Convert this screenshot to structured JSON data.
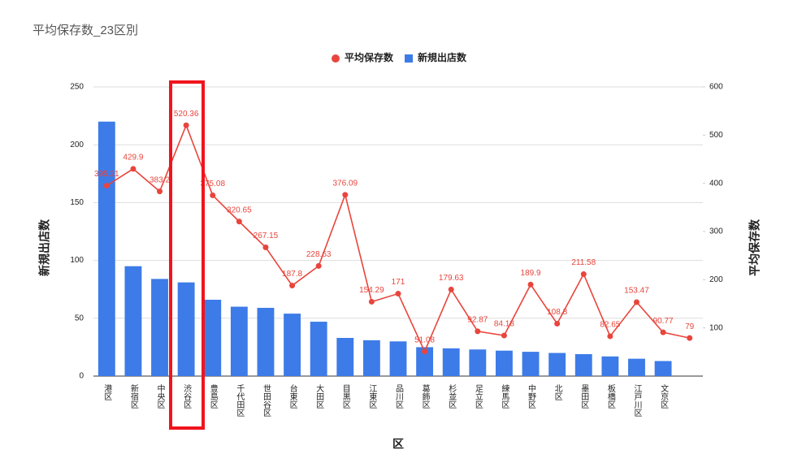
{
  "chart_data": {
    "type": "combo",
    "title": "平均保存数_23区別",
    "x_label": "区",
    "y_label": "新規出店数",
    "y2_label": "平均保存数",
    "categories": [
      "港区",
      "新宿区",
      "中央区",
      "渋谷区",
      "豊島区",
      "千代田区",
      "世田谷区",
      "台東区",
      "大田区",
      "目黒区",
      "江東区",
      "品川区",
      "葛飾区",
      "杉並区",
      "足立区",
      "練馬区",
      "中野区",
      "北区",
      "墨田区",
      "板橋区",
      "江戸川区",
      "文京区",
      null
    ],
    "series": [
      {
        "name": "平均保存数",
        "color": "#e8453c",
        "type": "line",
        "axis": "y2",
        "values": [
          395.21,
          429.9,
          383.2,
          520.36,
          375.08,
          320.65,
          267.15,
          187.8,
          228.63,
          376.09,
          154.29,
          171,
          51.08,
          179.63,
          92.87,
          84.18,
          189.9,
          108.8,
          211.58,
          82.65,
          153.47,
          90.77,
          79
        ]
      },
      {
        "name": "新規出店数",
        "color": "#3d7be8",
        "type": "bar",
        "axis": "y",
        "values": [
          220,
          95,
          84,
          81,
          66,
          60,
          59,
          54,
          47,
          33,
          31,
          30,
          25,
          24,
          23,
          22,
          21,
          20,
          19,
          17,
          15,
          13,
          null
        ]
      }
    ],
    "ylim": [
      0,
      250
    ],
    "yticks": [
      0,
      50,
      100,
      150,
      200,
      250
    ],
    "y2lim": [
      0,
      600
    ],
    "y2ticks": [
      100,
      200,
      300,
      400,
      500,
      600
    ],
    "grid": true,
    "legend": "top"
  }
}
